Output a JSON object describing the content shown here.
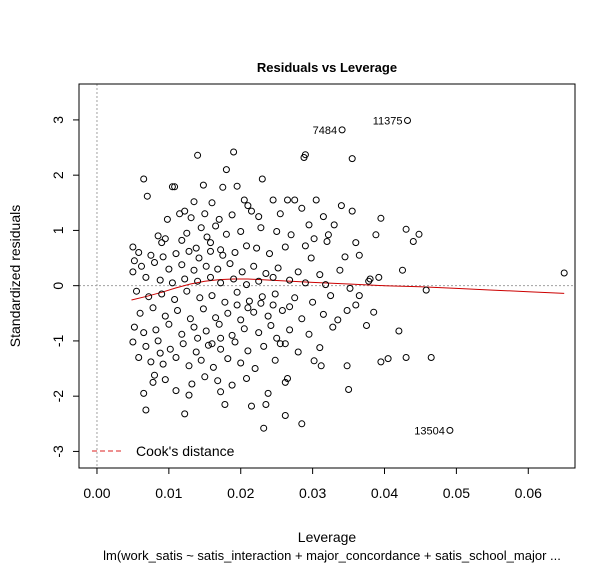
{
  "chart_data": {
    "type": "scatter",
    "title": "Residuals vs Leverage",
    "xlabel": "Leverage",
    "ylabel": "Standardized residuals",
    "subtitle": "lm(work_satis ~ satis_interaction + major_concordance + satis_school_major  ...",
    "xlim": [
      -0.0025,
      0.0665
    ],
    "ylim": [
      -3.3,
      3.65
    ],
    "xticks": [
      0.0,
      0.01,
      0.02,
      0.03,
      0.04,
      0.05,
      0.06
    ],
    "xtick_labels": [
      "0.00",
      "0.01",
      "0.02",
      "0.03",
      "0.04",
      "0.05",
      "0.06"
    ],
    "yticks": [
      -3,
      -2,
      -1,
      0,
      1,
      2,
      3
    ],
    "ytick_labels": [
      "-3",
      "-2",
      "-1",
      "0",
      "1",
      "2",
      "3"
    ],
    "reference_lines": {
      "horizontal_y": 0,
      "vertical_x": 0,
      "style": "dotted",
      "color": "#a0a0a0"
    },
    "legend": {
      "position": "bottom-left",
      "entries": [
        {
          "label": "Cook's distance",
          "color": "#dd2222",
          "style": "dashed"
        }
      ]
    },
    "smoother": {
      "color": "#cc0000",
      "x": [
        0.0048,
        0.007,
        0.009,
        0.011,
        0.013,
        0.015,
        0.017,
        0.019,
        0.021,
        0.024,
        0.027,
        0.03,
        0.035,
        0.04,
        0.045,
        0.05,
        0.055,
        0.06,
        0.065
      ],
      "y": [
        -0.26,
        -0.19,
        -0.12,
        -0.04,
        0.03,
        0.08,
        0.11,
        0.12,
        0.12,
        0.1,
        0.08,
        0.06,
        0.03,
        0.0,
        -0.02,
        -0.05,
        -0.08,
        -0.11,
        -0.14
      ]
    },
    "labeled_points": [
      {
        "label": "11375",
        "x": 0.0432,
        "y": 2.99
      },
      {
        "label": "7484",
        "x": 0.0341,
        "y": 2.82
      },
      {
        "label": "13504",
        "x": 0.0491,
        "y": -2.62
      }
    ],
    "points": [
      [
        0.0432,
        2.99
      ],
      [
        0.0341,
        2.82
      ],
      [
        0.0491,
        -2.62
      ],
      [
        0.065,
        0.23
      ],
      [
        0.0465,
        -1.3
      ],
      [
        0.0458,
        -0.08
      ],
      [
        0.019,
        2.42
      ],
      [
        0.014,
        2.36
      ],
      [
        0.029,
        2.37
      ],
      [
        0.0288,
        2.32
      ],
      [
        0.0355,
        2.3
      ],
      [
        0.018,
        2.1
      ],
      [
        0.0065,
        1.93
      ],
      [
        0.023,
        1.93
      ],
      [
        0.0105,
        1.79
      ],
      [
        0.0108,
        1.79
      ],
      [
        0.0148,
        1.82
      ],
      [
        0.0195,
        1.8
      ],
      [
        0.0175,
        1.78
      ],
      [
        0.007,
        1.62
      ],
      [
        0.0135,
        1.52
      ],
      [
        0.016,
        1.5
      ],
      [
        0.0205,
        1.55
      ],
      [
        0.021,
        1.45
      ],
      [
        0.0245,
        1.55
      ],
      [
        0.0265,
        1.55
      ],
      [
        0.0275,
        1.55
      ],
      [
        0.0305,
        1.55
      ],
      [
        0.0315,
        1.25
      ],
      [
        0.034,
        1.45
      ],
      [
        0.0355,
        1.35
      ],
      [
        0.0395,
        1.22
      ],
      [
        0.043,
        1.02
      ],
      [
        0.044,
        0.8
      ],
      [
        0.0448,
        0.93
      ],
      [
        0.0122,
        1.35
      ],
      [
        0.0131,
        1.23
      ],
      [
        0.015,
        1.3
      ],
      [
        0.017,
        1.2
      ],
      [
        0.0188,
        1.28
      ],
      [
        0.0215,
        1.35
      ],
      [
        0.0225,
        1.25
      ],
      [
        0.0255,
        1.3
      ],
      [
        0.0285,
        1.4
      ],
      [
        0.0295,
        1.1
      ],
      [
        0.033,
        1.1
      ],
      [
        0.0098,
        1.2
      ],
      [
        0.0115,
        1.3
      ],
      [
        0.0085,
        0.9
      ],
      [
        0.0095,
        0.85
      ],
      [
        0.0125,
        0.95
      ],
      [
        0.0145,
        1.05
      ],
      [
        0.0165,
        1.08
      ],
      [
        0.018,
        0.93
      ],
      [
        0.02,
        0.98
      ],
      [
        0.0228,
        1.05
      ],
      [
        0.025,
        0.98
      ],
      [
        0.027,
        0.92
      ],
      [
        0.032,
        0.8
      ],
      [
        0.036,
        0.78
      ],
      [
        0.005,
        0.7
      ],
      [
        0.0058,
        0.6
      ],
      [
        0.0075,
        0.55
      ],
      [
        0.0092,
        0.52
      ],
      [
        0.011,
        0.58
      ],
      [
        0.0128,
        0.62
      ],
      [
        0.0142,
        0.5
      ],
      [
        0.0158,
        0.62
      ],
      [
        0.0175,
        0.55
      ],
      [
        0.0192,
        0.6
      ],
      [
        0.0208,
        0.72
      ],
      [
        0.0222,
        0.68
      ],
      [
        0.024,
        0.58
      ],
      [
        0.0262,
        0.7
      ],
      [
        0.0298,
        0.5
      ],
      [
        0.0345,
        0.52
      ],
      [
        0.0365,
        0.55
      ],
      [
        0.0052,
        0.45
      ],
      [
        0.0062,
        0.35
      ],
      [
        0.008,
        0.42
      ],
      [
        0.01,
        0.3
      ],
      [
        0.0118,
        0.38
      ],
      [
        0.0135,
        0.28
      ],
      [
        0.0152,
        0.35
      ],
      [
        0.0168,
        0.3
      ],
      [
        0.0185,
        0.4
      ],
      [
        0.0202,
        0.25
      ],
      [
        0.0218,
        0.35
      ],
      [
        0.0235,
        0.22
      ],
      [
        0.0252,
        0.32
      ],
      [
        0.028,
        0.25
      ],
      [
        0.031,
        0.2
      ],
      [
        0.0338,
        0.28
      ],
      [
        0.038,
        0.12
      ],
      [
        0.0392,
        0.15
      ],
      [
        0.0425,
        0.28
      ],
      [
        0.005,
        0.25
      ],
      [
        0.0068,
        0.15
      ],
      [
        0.0088,
        0.1
      ],
      [
        0.0105,
        0.05
      ],
      [
        0.0122,
        0.12
      ],
      [
        0.014,
        0.08
      ],
      [
        0.0158,
        0.15
      ],
      [
        0.0172,
        0.05
      ],
      [
        0.019,
        0.12
      ],
      [
        0.0208,
        0.02
      ],
      [
        0.0225,
        0.08
      ],
      [
        0.0245,
        0.15
      ],
      [
        0.0268,
        0.1
      ],
      [
        0.029,
        0.05
      ],
      [
        0.0318,
        0.02
      ],
      [
        0.0352,
        -0.05
      ],
      [
        0.0378,
        0.08
      ],
      [
        0.0055,
        -0.1
      ],
      [
        0.0072,
        -0.2
      ],
      [
        0.009,
        -0.15
      ],
      [
        0.0108,
        -0.25
      ],
      [
        0.0125,
        -0.1
      ],
      [
        0.0143,
        -0.22
      ],
      [
        0.016,
        -0.18
      ],
      [
        0.0178,
        -0.3
      ],
      [
        0.0195,
        -0.12
      ],
      [
        0.0212,
        -0.28
      ],
      [
        0.023,
        -0.2
      ],
      [
        0.0248,
        -0.15
      ],
      [
        0.0275,
        -0.22
      ],
      [
        0.03,
        -0.3
      ],
      [
        0.0325,
        -0.18
      ],
      [
        0.036,
        -0.35
      ],
      [
        0.006,
        -0.5
      ],
      [
        0.0078,
        -0.4
      ],
      [
        0.0095,
        -0.55
      ],
      [
        0.0112,
        -0.45
      ],
      [
        0.013,
        -0.6
      ],
      [
        0.0148,
        -0.42
      ],
      [
        0.0165,
        -0.58
      ],
      [
        0.0182,
        -0.5
      ],
      [
        0.02,
        -0.62
      ],
      [
        0.0218,
        -0.48
      ],
      [
        0.0238,
        -0.55
      ],
      [
        0.0258,
        -0.45
      ],
      [
        0.0285,
        -0.6
      ],
      [
        0.0315,
        -0.52
      ],
      [
        0.0348,
        -0.45
      ],
      [
        0.0385,
        -0.48
      ],
      [
        0.0052,
        -0.75
      ],
      [
        0.0065,
        -0.85
      ],
      [
        0.0082,
        -0.8
      ],
      [
        0.01,
        -0.7
      ],
      [
        0.0118,
        -0.88
      ],
      [
        0.0135,
        -0.75
      ],
      [
        0.0152,
        -0.82
      ],
      [
        0.017,
        -0.7
      ],
      [
        0.0188,
        -0.9
      ],
      [
        0.0205,
        -0.78
      ],
      [
        0.0225,
        -0.85
      ],
      [
        0.0242,
        -0.72
      ],
      [
        0.0268,
        -0.8
      ],
      [
        0.0295,
        -0.88
      ],
      [
        0.0328,
        -0.75
      ],
      [
        0.0375,
        -0.72
      ],
      [
        0.042,
        -0.82
      ],
      [
        0.005,
        -1.02
      ],
      [
        0.0068,
        -1.1
      ],
      [
        0.0085,
        -1.0
      ],
      [
        0.0102,
        -1.15
      ],
      [
        0.012,
        -1.05
      ],
      [
        0.0138,
        -1.2
      ],
      [
        0.0155,
        -1.08
      ],
      [
        0.0172,
        -1.15
      ],
      [
        0.0192,
        -1.02
      ],
      [
        0.021,
        -1.18
      ],
      [
        0.0232,
        -1.1
      ],
      [
        0.0255,
        -1.05
      ],
      [
        0.028,
        -1.2
      ],
      [
        0.031,
        -1.12
      ],
      [
        0.0058,
        -1.3
      ],
      [
        0.0075,
        -1.38
      ],
      [
        0.0092,
        -1.42
      ],
      [
        0.011,
        -1.3
      ],
      [
        0.0128,
        -1.45
      ],
      [
        0.0145,
        -1.35
      ],
      [
        0.0162,
        -1.48
      ],
      [
        0.0182,
        -1.32
      ],
      [
        0.02,
        -1.4
      ],
      [
        0.022,
        -1.5
      ],
      [
        0.0248,
        -1.35
      ],
      [
        0.0302,
        -1.36
      ],
      [
        0.0312,
        -1.45
      ],
      [
        0.0348,
        -1.45
      ],
      [
        0.0395,
        -1.38
      ],
      [
        0.0405,
        -1.32
      ],
      [
        0.043,
        -1.3
      ],
      [
        0.008,
        -1.62
      ],
      [
        0.0095,
        -1.7
      ],
      [
        0.0132,
        -1.78
      ],
      [
        0.015,
        -1.65
      ],
      [
        0.0168,
        -1.72
      ],
      [
        0.0188,
        -1.8
      ],
      [
        0.0208,
        -1.68
      ],
      [
        0.0262,
        -1.75
      ],
      [
        0.0078,
        -1.75
      ],
      [
        0.0065,
        -1.95
      ],
      [
        0.011,
        -1.9
      ],
      [
        0.0128,
        -1.98
      ],
      [
        0.0172,
        -1.92
      ],
      [
        0.0238,
        -1.95
      ],
      [
        0.0265,
        -1.68
      ],
      [
        0.035,
        -1.88
      ],
      [
        0.0068,
        -2.25
      ],
      [
        0.0122,
        -2.32
      ],
      [
        0.0178,
        -2.15
      ],
      [
        0.0215,
        -2.18
      ],
      [
        0.0235,
        -2.15
      ],
      [
        0.0262,
        -2.35
      ],
      [
        0.0232,
        -2.58
      ],
      [
        0.0285,
        -2.5
      ],
      [
        0.0262,
        -1.05
      ],
      [
        0.025,
        -0.95
      ],
      [
        0.0335,
        -0.62
      ],
      [
        0.0365,
        -0.18
      ],
      [
        0.0388,
        0.92
      ],
      [
        0.029,
        0.72
      ],
      [
        0.0302,
        0.85
      ],
      [
        0.0322,
        0.92
      ],
      [
        0.0153,
        0.88
      ],
      [
        0.0138,
        0.68
      ],
      [
        0.0118,
        0.82
      ],
      [
        0.016,
        -1.05
      ],
      [
        0.0172,
        -0.95
      ],
      [
        0.0088,
        -1.22
      ],
      [
        0.014,
        -0.95
      ],
      [
        0.0228,
        -0.32
      ],
      [
        0.0245,
        -0.35
      ],
      [
        0.0268,
        -0.38
      ],
      [
        0.0195,
        -0.35
      ],
      [
        0.021,
        -0.4
      ],
      [
        0.009,
        0.78
      ],
      [
        0.0172,
        0.65
      ],
      [
        0.0158,
        0.78
      ]
    ]
  }
}
